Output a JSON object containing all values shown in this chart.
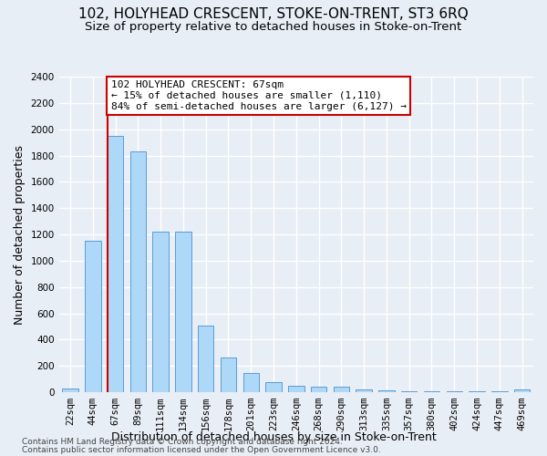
{
  "title": "102, HOLYHEAD CRESCENT, STOKE-ON-TRENT, ST3 6RQ",
  "subtitle": "Size of property relative to detached houses in Stoke-on-Trent",
  "xlabel": "Distribution of detached houses by size in Stoke-on-Trent",
  "ylabel": "Number of detached properties",
  "annotation_line1": "102 HOLYHEAD CRESCENT: 67sqm",
  "annotation_line2": "← 15% of detached houses are smaller (1,110)",
  "annotation_line3": "84% of semi-detached houses are larger (6,127) →",
  "footer_line1": "Contains HM Land Registry data © Crown copyright and database right 2024.",
  "footer_line2": "Contains public sector information licensed under the Open Government Licence v3.0.",
  "bar_color": "#add8f7",
  "bar_edge_color": "#5b9bd5",
  "vline_index": 2,
  "vline_color": "#cc0000",
  "categories": [
    "22sqm",
    "44sqm",
    "67sqm",
    "89sqm",
    "111sqm",
    "134sqm",
    "156sqm",
    "178sqm",
    "201sqm",
    "223sqm",
    "246sqm",
    "268sqm",
    "290sqm",
    "313sqm",
    "335sqm",
    "357sqm",
    "380sqm",
    "402sqm",
    "424sqm",
    "447sqm",
    "469sqm"
  ],
  "values": [
    30,
    1150,
    1950,
    1830,
    1220,
    1220,
    510,
    265,
    150,
    80,
    50,
    45,
    40,
    20,
    18,
    10,
    5,
    5,
    5,
    5,
    20
  ],
  "ylim": [
    0,
    2400
  ],
  "yticks": [
    0,
    200,
    400,
    600,
    800,
    1000,
    1200,
    1400,
    1600,
    1800,
    2000,
    2200,
    2400
  ],
  "background_color": "#e8eef5",
  "grid_color": "#ffffff",
  "title_fontsize": 11,
  "subtitle_fontsize": 9.5,
  "axis_label_fontsize": 9,
  "tick_fontsize": 7.5,
  "annotation_fontsize": 8,
  "footer_fontsize": 6.5
}
